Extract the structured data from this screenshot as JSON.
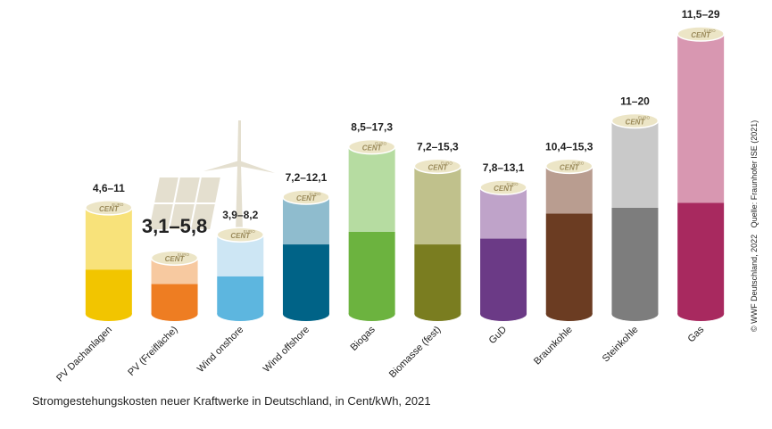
{
  "chart_data": {
    "type": "range-cylinder",
    "caption": "Stromgestehungskosten neuer Kraftwerke in Deutschland, in Cent/kWh, 2021",
    "source": "© WWF Deutschland, 2022   Quelle: Fraunhofer ISE (2021)",
    "coin_small": "EURO",
    "coin_text": "CENT",
    "categories": [
      "PV Dachanlagen",
      "PV (Freifläche)",
      "Wind onshore",
      "Wind offshore",
      "Biogas",
      "Biomasse (fest)",
      "GuD",
      "Braunkohle",
      "Steinkohle",
      "Gas"
    ],
    "low": [
      4.6,
      3.1,
      3.9,
      7.2,
      8.5,
      7.2,
      7.8,
      10.4,
      11,
      11.5
    ],
    "high": [
      11,
      5.8,
      8.2,
      12.1,
      17.3,
      15.3,
      13.1,
      15.3,
      20,
      29
    ],
    "range_labels": [
      "4,6–11",
      "3,1–5,8",
      "3,9–8,2",
      "7,2–12,1",
      "8,5–17,3",
      "7,2–15,3",
      "7,8–13,1",
      "10,4–15,3",
      "11–20",
      "11,5–29"
    ],
    "colors_low": [
      "#f2c500",
      "#ee7d22",
      "#5db6df",
      "#006387",
      "#6cb33f",
      "#7a7d20",
      "#6b3a86",
      "#6b3c22",
      "#7d7d7d",
      "#a8295f"
    ],
    "colors_high": [
      "#f8e27a",
      "#f7c9a0",
      "#cde6f4",
      "#8fbcce",
      "#b6dca1",
      "#c0c18c",
      "#bfa3c9",
      "#b99d90",
      "#c9c9c9",
      "#d897b1"
    ]
  }
}
